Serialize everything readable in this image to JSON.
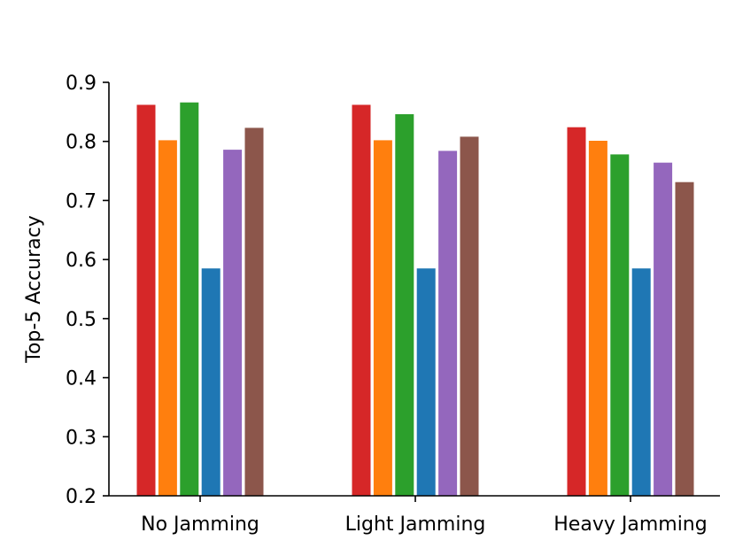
{
  "chart_data": {
    "type": "bar",
    "title": "",
    "xlabel": "",
    "ylabel": "Top-5 Accuracy",
    "ylim": [
      0.2,
      0.9
    ],
    "yticks": [
      "0.2",
      "0.3",
      "0.4",
      "0.5",
      "0.6",
      "0.7",
      "0.8",
      "0.9"
    ],
    "grid": false,
    "legend": "none",
    "categories": [
      "No Jamming",
      "Light Jamming",
      "Heavy Jamming"
    ],
    "series": [
      {
        "name": "series-1",
        "color": "#d62728",
        "values": [
          0.862,
          0.862,
          0.824
        ]
      },
      {
        "name": "series-2",
        "color": "#ff7f0e",
        "values": [
          0.802,
          0.802,
          0.801
        ]
      },
      {
        "name": "series-3",
        "color": "#2ca02c",
        "values": [
          0.866,
          0.846,
          0.778
        ]
      },
      {
        "name": "series-4",
        "color": "#1f77b4",
        "values": [
          0.585,
          0.585,
          0.585
        ]
      },
      {
        "name": "series-5",
        "color": "#9467bd",
        "values": [
          0.786,
          0.784,
          0.764
        ]
      },
      {
        "name": "series-6",
        "color": "#8c564b",
        "values": [
          0.823,
          0.808,
          0.731
        ]
      }
    ]
  }
}
